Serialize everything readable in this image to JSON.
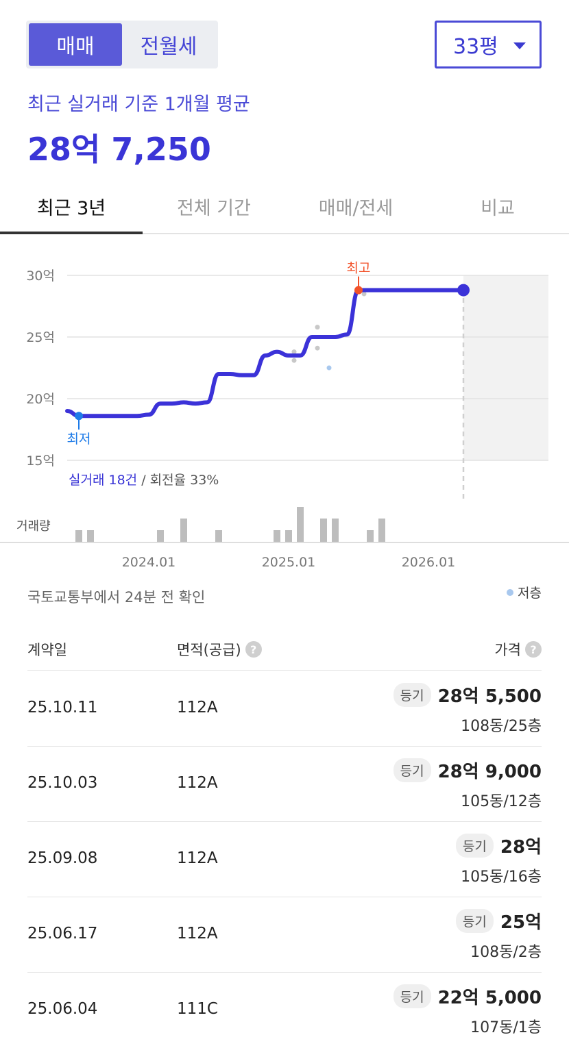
{
  "header": {
    "segment": {
      "active": "매매",
      "inactive": "전월세"
    },
    "size_select": "33평",
    "avg_label": "최근 실거래 기준 1개월 평균",
    "avg_price": "28억 7,250"
  },
  "tabs": [
    {
      "label": "최근 3년"
    },
    {
      "label": "전체 기간"
    },
    {
      "label": "매매/전세"
    },
    {
      "label": "비교"
    }
  ],
  "chart_data": {
    "type": "line",
    "y_unit": "억",
    "ylim": [
      15,
      30
    ],
    "y_ticks": [
      "30억",
      "25억",
      "20억",
      "15억"
    ],
    "x_ticks": [
      "2024.01",
      "2025.01",
      "2026.01"
    ],
    "series": [
      {
        "x": [
          "2023.06",
          "2023.07",
          "2023.08",
          "2023.09",
          "2023.10",
          "2023.11",
          "2023.12",
          "2024.01",
          "2024.02",
          "2024.03",
          "2024.04",
          "2024.05",
          "2024.06",
          "2024.07",
          "2024.08",
          "2024.09",
          "2024.10",
          "2024.11",
          "2024.12",
          "2025.01",
          "2025.02",
          "2025.03",
          "2025.04",
          "2025.05",
          "2025.06",
          "2025.07",
          "2025.08",
          "2025.09",
          "2025.10",
          "2025.11",
          "2025.12",
          "2026.01",
          "2026.02",
          "2026.03",
          "2026.04"
        ],
        "values": [
          19.0,
          18.6,
          18.6,
          18.6,
          18.6,
          18.6,
          18.6,
          18.7,
          19.6,
          19.6,
          19.7,
          19.6,
          19.7,
          22.0,
          22.0,
          21.9,
          21.9,
          23.5,
          23.8,
          23.5,
          23.5,
          25.0,
          25.0,
          25.0,
          25.2,
          28.8,
          28.8,
          28.8,
          28.8,
          28.8,
          28.8,
          28.8,
          28.8,
          28.8,
          28.8
        ]
      }
    ],
    "scatter_points": [
      {
        "x": "2025.01",
        "y": 23.8,
        "low_floor": false
      },
      {
        "x": "2025.01",
        "y": 23.1,
        "low_floor": false
      },
      {
        "x": "2025.03",
        "y": 25.8,
        "low_floor": false
      },
      {
        "x": "2025.03",
        "y": 24.1,
        "low_floor": false
      },
      {
        "x": "2025.04",
        "y": 22.5,
        "low_floor": true
      },
      {
        "x": "2025.07",
        "y": 28.5,
        "low_floor": false
      }
    ],
    "annotations": {
      "high": "최고",
      "low": "최저"
    },
    "volume_label": "거래량",
    "volume": [
      {
        "x": "2023.07",
        "v": 1
      },
      {
        "x": "2023.08",
        "v": 1
      },
      {
        "x": "2024.02",
        "v": 1
      },
      {
        "x": "2024.04",
        "v": 2
      },
      {
        "x": "2024.07",
        "v": 1
      },
      {
        "x": "2024.12",
        "v": 1
      },
      {
        "x": "2025.01",
        "v": 1
      },
      {
        "x": "2025.02",
        "v": 3
      },
      {
        "x": "2025.04",
        "v": 2
      },
      {
        "x": "2025.05",
        "v": 2
      },
      {
        "x": "2025.08",
        "v": 1
      },
      {
        "x": "2025.09",
        "v": 2
      }
    ],
    "colors": {
      "line": "#3b32d8",
      "high": "#f2522a",
      "low": "#1e7be8",
      "low_floor_dot": "#a8c8ee",
      "dot": "#c8c8c8",
      "volume": "#bdbdbd",
      "future_shade": "#f2f2f2"
    }
  },
  "stats": {
    "deals": "실거래 18건",
    "turnover": "회전율 33%"
  },
  "source_text": "국토교통부에서 24분 전 확인",
  "legend_low_floor": "저층",
  "table": {
    "headers": {
      "date": "계약일",
      "area": "면적(공급)",
      "price": "가격"
    },
    "rows": [
      {
        "date": "25.10.11",
        "area": "112A",
        "badge": "등기",
        "price": "28억 5,500",
        "floor": "108동/25층"
      },
      {
        "date": "25.10.03",
        "area": "112A",
        "badge": "등기",
        "price": "28억 9,000",
        "floor": "105동/12층"
      },
      {
        "date": "25.09.08",
        "area": "112A",
        "badge": "등기",
        "price": "28억",
        "floor": "105동/16층"
      },
      {
        "date": "25.06.17",
        "area": "112A",
        "badge": "등기",
        "price": "25억",
        "floor": "108동/2층"
      },
      {
        "date": "25.06.04",
        "area": "111C",
        "badge": "등기",
        "price": "22억 5,000",
        "floor": "107동/1층"
      }
    ]
  }
}
